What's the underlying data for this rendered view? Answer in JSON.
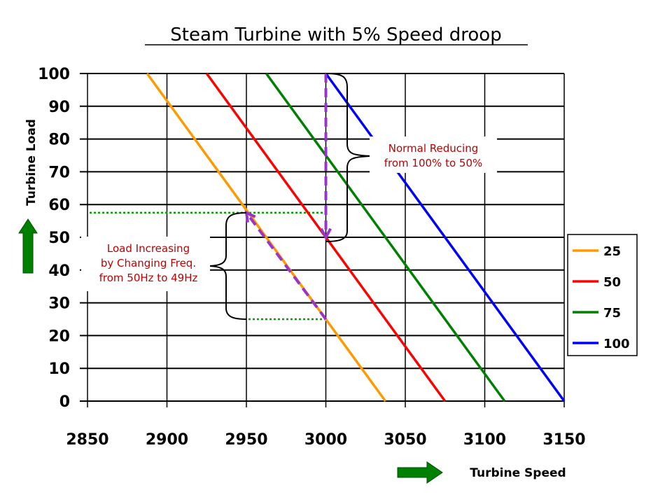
{
  "chart_data": {
    "type": "line",
    "title": "Steam Turbine with 5% Speed droop",
    "xlabel": "Turbine Speed",
    "ylabel": "Turbine Load",
    "xlim": [
      2850,
      3150
    ],
    "ylim": [
      0,
      100
    ],
    "xticks": [
      2850,
      2900,
      2950,
      3000,
      3050,
      3100,
      3150
    ],
    "yticks": [
      0,
      10,
      20,
      30,
      40,
      50,
      60,
      70,
      80,
      90,
      100
    ],
    "grid": true,
    "legend_position": "right",
    "series": [
      {
        "name": "25",
        "color": "#ff9900",
        "x": [
          2887.5,
          3037.5
        ],
        "y": [
          100,
          0
        ]
      },
      {
        "name": "50",
        "color": "#ff0000",
        "x": [
          2925,
          3075
        ],
        "y": [
          100,
          0
        ]
      },
      {
        "name": "75",
        "color": "#008000",
        "x": [
          2962.5,
          3112.5
        ],
        "y": [
          100,
          0
        ]
      },
      {
        "name": "100",
        "color": "#0000ff",
        "x": [
          3000,
          3150
        ],
        "y": [
          100,
          0
        ]
      }
    ],
    "annotations": [
      {
        "text_lines": [
          "Normal Reducing",
          "from 100% to 50%"
        ],
        "color": "#c00000"
      },
      {
        "text_lines": [
          "Load Increasing",
          "by Changing Freq.",
          "from 50Hz to 49Hz"
        ],
        "color": "#c00000"
      }
    ],
    "reference_lines": [
      {
        "type": "dotted",
        "color": "#00a000",
        "y": 57.5,
        "x": [
          2850,
          3000
        ]
      },
      {
        "type": "dotted",
        "color": "#00a000",
        "y": 25,
        "x": [
          2950,
          3000
        ]
      }
    ],
    "arrows": [
      {
        "type": "dashed",
        "color": "#9933cc",
        "from": [
          3000,
          100
        ],
        "to": [
          3000,
          50
        ]
      },
      {
        "type": "dashed",
        "color": "#9933cc",
        "from": [
          3000,
          25
        ],
        "to": [
          2950,
          57.5
        ]
      }
    ],
    "axis_arrow_color": "#008000"
  }
}
